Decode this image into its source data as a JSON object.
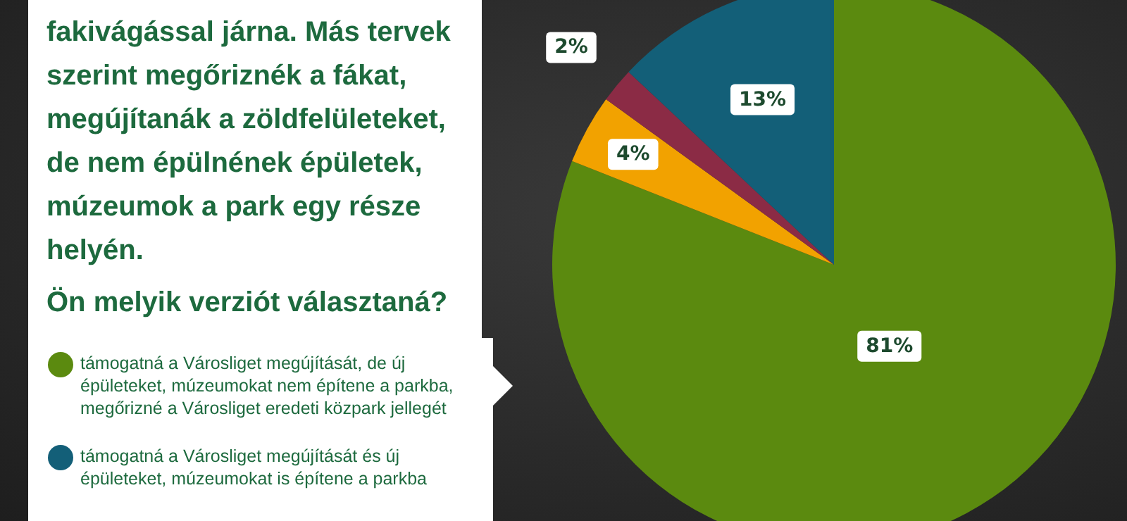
{
  "chart_data": {
    "type": "pie",
    "title": "fakivágással járna. Más tervek szerint megőriznék a fákat, megújítanák a zöldfelületeket, de nem épülnének épületek, múzeumok a park egy része helyén.",
    "subtitle": "Ön melyik verziót választaná?",
    "categories": [
      "támogatná a Városliget megújítását, de új épületeket, múzeumokat nem építene a parkba, megőrizné a Városliget eredeti közpark jellegét",
      null,
      null,
      "támogatná a Városliget megújítását és új épületeket, múzeumokat is építene a parkba"
    ],
    "values": [
      81,
      4,
      2,
      13
    ],
    "colors": [
      "#5b8a0f",
      "#f2a200",
      "#8b2b45",
      "#135f78"
    ],
    "value_labels": [
      "81%",
      "4%",
      "2%",
      "13%"
    ],
    "legend": "left"
  }
}
